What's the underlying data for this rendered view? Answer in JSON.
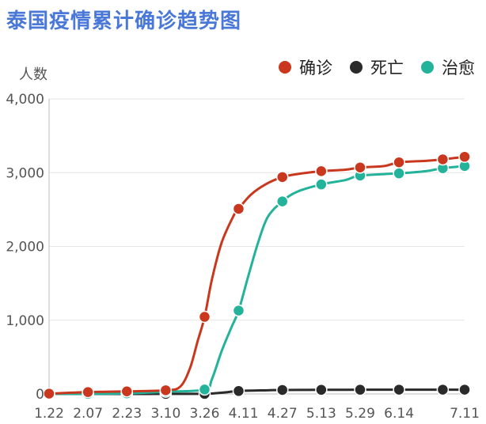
{
  "title": "泰国疫情累计确诊趋势图",
  "y_unit": "人数",
  "colors": {
    "confirmed": "#c9381e",
    "deaths": "#2a2a2a",
    "recovered": "#23b29a",
    "title": "#4a78d8",
    "grid": "#e6e6e6",
    "axis": "#bdbdbd"
  },
  "chart_data": {
    "type": "line",
    "ylim": [
      0,
      4000
    ],
    "y_ticks": [
      0,
      1000,
      2000,
      3000,
      4000
    ],
    "y_tick_labels": [
      "0",
      "1,000",
      "2,000",
      "3,000",
      "4,000"
    ],
    "x_tick_labels": [
      "1.22",
      "2.07",
      "2.23",
      "3.10",
      "3.26",
      "4.11",
      "4.27",
      "5.13",
      "5.29",
      "6.14",
      "7.11"
    ],
    "x_tick_days": [
      0,
      16,
      32,
      48,
      64,
      80,
      96,
      112,
      128,
      144,
      171
    ],
    "xlim_days": [
      0,
      171
    ],
    "grid": true,
    "legend_position": "top-right",
    "series": [
      {
        "name": "确诊",
        "key": "confirmed",
        "line": [
          [
            0,
            4
          ],
          [
            16,
            25
          ],
          [
            32,
            35
          ],
          [
            48,
            50
          ],
          [
            54,
            100
          ],
          [
            58,
            350
          ],
          [
            61,
            700
          ],
          [
            64,
            1045
          ],
          [
            67,
            1550
          ],
          [
            71,
            2050
          ],
          [
            76,
            2420
          ],
          [
            78,
            2510
          ],
          [
            83,
            2700
          ],
          [
            89,
            2840
          ],
          [
            96,
            2940
          ],
          [
            102,
            2980
          ],
          [
            112,
            3020
          ],
          [
            122,
            3040
          ],
          [
            128,
            3070
          ],
          [
            138,
            3090
          ],
          [
            144,
            3140
          ],
          [
            155,
            3160
          ],
          [
            162,
            3180
          ],
          [
            171,
            3215
          ]
        ],
        "markers": [
          [
            0,
            4
          ],
          [
            16,
            25
          ],
          [
            32,
            35
          ],
          [
            48,
            50
          ],
          [
            64,
            1045
          ],
          [
            78,
            2510
          ],
          [
            96,
            2940
          ],
          [
            112,
            3020
          ],
          [
            128,
            3070
          ],
          [
            144,
            3140
          ],
          [
            162,
            3180
          ],
          [
            171,
            3215
          ]
        ]
      },
      {
        "name": "死亡",
        "key": "deaths",
        "line": [
          [
            0,
            0
          ],
          [
            16,
            0
          ],
          [
            32,
            0
          ],
          [
            48,
            1
          ],
          [
            64,
            1
          ],
          [
            72,
            20
          ],
          [
            78,
            40
          ],
          [
            90,
            50
          ],
          [
            96,
            54
          ],
          [
            112,
            56
          ],
          [
            128,
            57
          ],
          [
            144,
            58
          ],
          [
            162,
            58
          ],
          [
            171,
            58
          ]
        ],
        "markers": [
          [
            0,
            0
          ],
          [
            16,
            0
          ],
          [
            32,
            0
          ],
          [
            48,
            1
          ],
          [
            64,
            1
          ],
          [
            78,
            40
          ],
          [
            96,
            54
          ],
          [
            112,
            56
          ],
          [
            128,
            57
          ],
          [
            144,
            58
          ],
          [
            162,
            58
          ],
          [
            171,
            58
          ]
        ]
      },
      {
        "name": "治愈",
        "key": "recovered",
        "line": [
          [
            0,
            0
          ],
          [
            16,
            2
          ],
          [
            32,
            8
          ],
          [
            48,
            30
          ],
          [
            64,
            60
          ],
          [
            67,
            200
          ],
          [
            71,
            580
          ],
          [
            75,
            900
          ],
          [
            78,
            1130
          ],
          [
            82,
            1600
          ],
          [
            86,
            2050
          ],
          [
            90,
            2400
          ],
          [
            96,
            2610
          ],
          [
            102,
            2740
          ],
          [
            112,
            2840
          ],
          [
            122,
            2900
          ],
          [
            128,
            2960
          ],
          [
            144,
            2990
          ],
          [
            155,
            3020
          ],
          [
            162,
            3060
          ],
          [
            171,
            3090
          ]
        ],
        "markers": [
          [
            0,
            0
          ],
          [
            16,
            2
          ],
          [
            32,
            8
          ],
          [
            48,
            30
          ],
          [
            64,
            60
          ],
          [
            78,
            1130
          ],
          [
            96,
            2610
          ],
          [
            112,
            2840
          ],
          [
            128,
            2960
          ],
          [
            144,
            2990
          ],
          [
            162,
            3060
          ],
          [
            171,
            3090
          ]
        ]
      }
    ]
  }
}
